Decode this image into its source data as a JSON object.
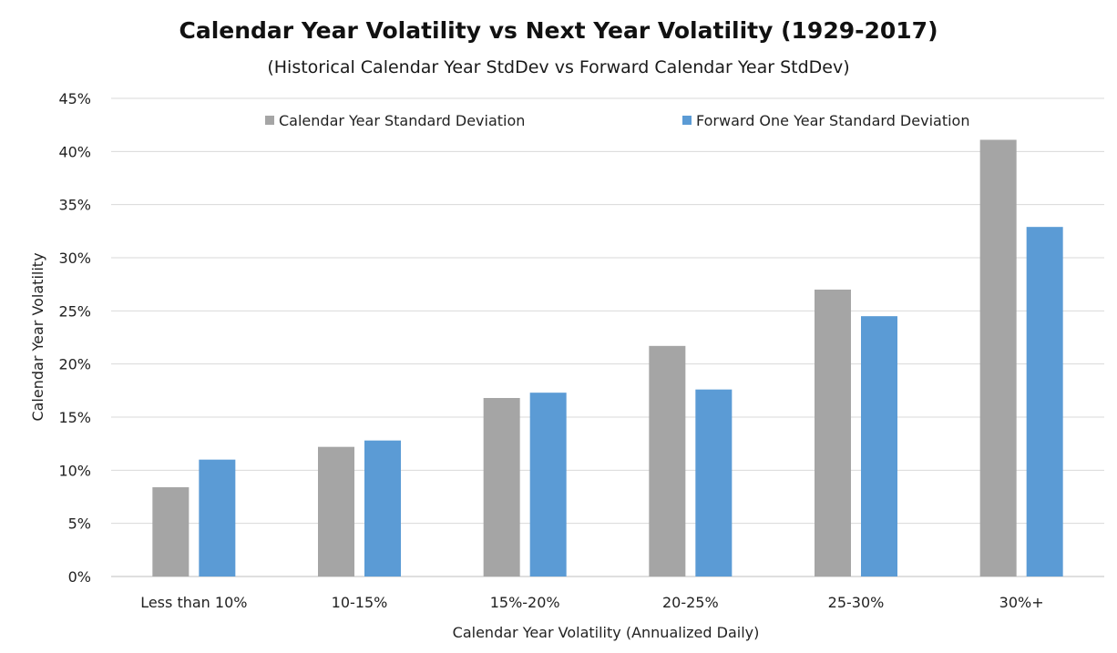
{
  "chart_data": {
    "type": "bar",
    "title": "Calendar Year Volatility vs Next Year Volatility (1929-2017)",
    "subtitle": "(Historical Calendar Year StdDev vs Forward Calendar Year StdDev)",
    "xlabel": "Calendar Year Volatility (Annualized Daily)",
    "ylabel": "Calendar Year Volatility",
    "categories": [
      "Less than 10%",
      "10-15%",
      "15%-20%",
      "20-25%",
      "25-30%",
      "30%+"
    ],
    "series": [
      {
        "name": "Calendar Year Standard Deviation",
        "color": "#a5a5a5",
        "values": [
          8.4,
          12.2,
          16.8,
          21.7,
          27.0,
          41.1
        ]
      },
      {
        "name": "Forward One Year Standard Deviation",
        "color": "#5b9bd5",
        "values": [
          11.0,
          12.8,
          17.3,
          17.6,
          24.5,
          32.9
        ]
      }
    ],
    "ylim": [
      0,
      45
    ],
    "yticks": [
      0,
      5,
      10,
      15,
      20,
      25,
      30,
      35,
      40,
      45
    ],
    "ytick_suffix": "%",
    "grid": true,
    "legend_position": "top"
  }
}
